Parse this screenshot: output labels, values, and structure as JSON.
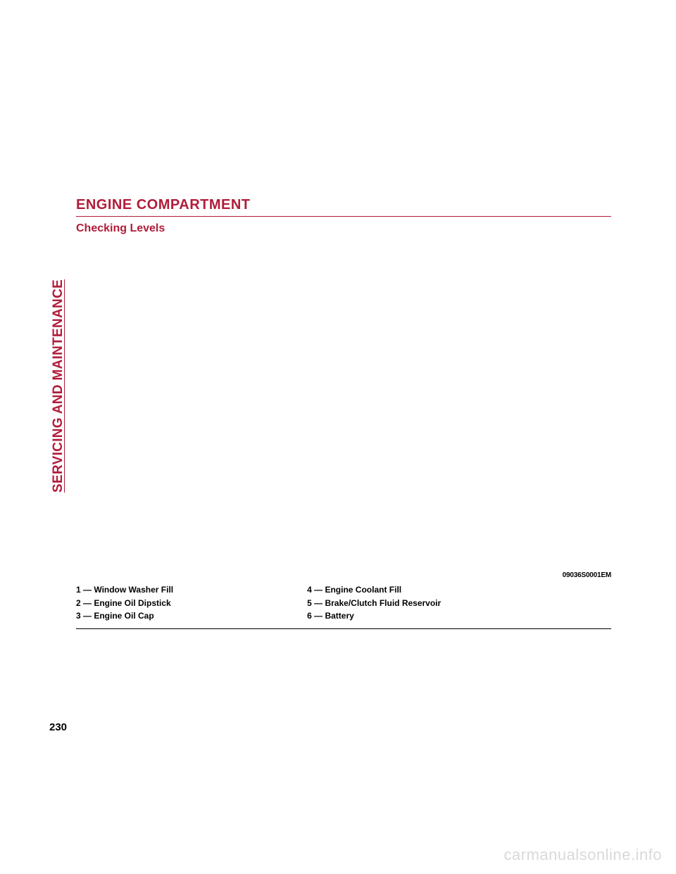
{
  "sideLabel": "SERVICING AND MAINTENANCE",
  "heading1": "ENGINE COMPARTMENT",
  "heading2": "Checking Levels",
  "caption": "09036S0001EM",
  "legend": {
    "left": [
      "1 — Window Washer Fill",
      "2 — Engine Oil Dipstick",
      "3 — Engine Oil Cap"
    ],
    "right": [
      "4 — Engine Coolant Fill",
      "5 — Brake/Clutch Fluid Reservoir",
      "6 — Battery"
    ]
  },
  "pageNumber": "230",
  "watermark": "carmanualsonline.info"
}
